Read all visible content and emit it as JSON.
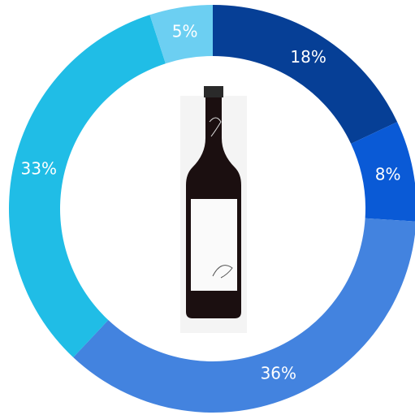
{
  "chart_data": {
    "type": "donut",
    "values": [
      18,
      8,
      36,
      33,
      5
    ],
    "value_labels": [
      "18%",
      "8%",
      "36%",
      "33%",
      "5%"
    ],
    "colors": [
      "#063f96",
      "#0a5ad6",
      "#4383df",
      "#20bde6",
      "#6ccff2"
    ]
  }
}
